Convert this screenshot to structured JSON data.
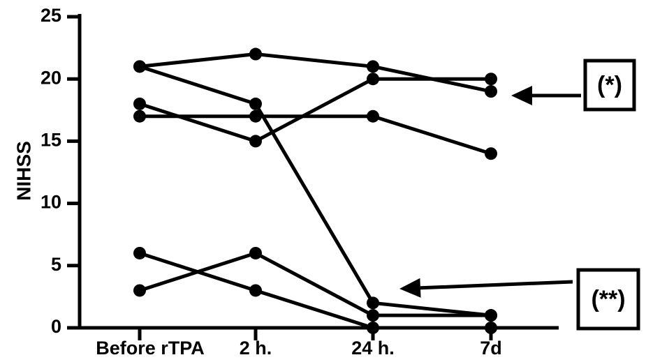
{
  "chart_data": {
    "type": "line",
    "ylabel": "NIHSS",
    "xlabel": "",
    "categories": [
      "Before rTPA",
      "2 h.",
      "24 h.",
      "7d"
    ],
    "ylim": [
      0,
      25
    ],
    "yticks": [
      0,
      5,
      10,
      15,
      20,
      25
    ],
    "series": [
      {
        "values": [
          21,
          22,
          21,
          19
        ]
      },
      {
        "values": [
          21,
          18,
          2,
          1
        ]
      },
      {
        "values": [
          18,
          15,
          20,
          20
        ]
      },
      {
        "values": [
          17,
          17,
          17,
          14
        ]
      },
      {
        "values": [
          6,
          3,
          0,
          0
        ]
      },
      {
        "values": [
          3,
          6,
          1,
          1
        ]
      }
    ],
    "annotations": [
      {
        "label": "(*)",
        "points_to_series": 0,
        "points_to_category": "7d"
      },
      {
        "label": "(**)",
        "points_to_series": 1,
        "points_to_category": "24 h."
      }
    ]
  }
}
